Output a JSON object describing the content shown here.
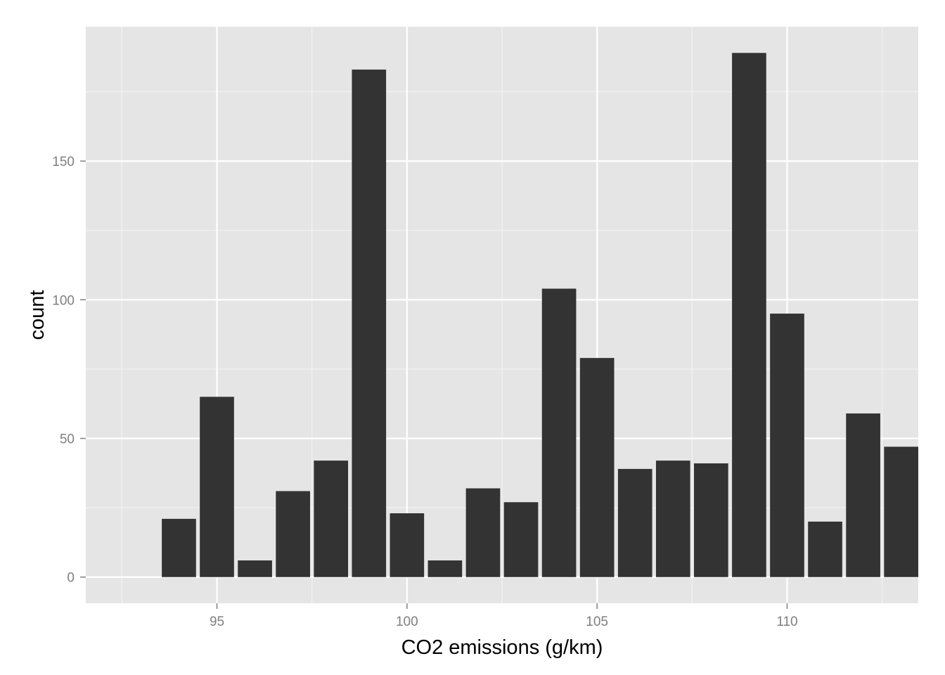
{
  "chart_data": {
    "type": "bar",
    "title": "",
    "xlabel": "CO2 emissions (g/km)",
    "ylabel": "count",
    "x": [
      94,
      95,
      96,
      97,
      98,
      99,
      100,
      101,
      102,
      103,
      104,
      105,
      106,
      107,
      108,
      109,
      110,
      111,
      112,
      113
    ],
    "values": [
      21,
      65,
      6,
      31,
      42,
      183,
      23,
      6,
      32,
      27,
      104,
      79,
      39,
      42,
      41,
      189,
      95,
      20,
      59,
      47
    ],
    "xlim": [
      91.55,
      113.45
    ],
    "ylim": [
      -9.45,
      198.45
    ],
    "x_ticks": [
      95,
      100,
      105,
      110
    ],
    "x_tick_labels": [
      "95",
      "100",
      "105",
      "110"
    ],
    "y_ticks": [
      0,
      50,
      100,
      150
    ],
    "y_tick_labels": [
      "0",
      "50",
      "100",
      "150"
    ],
    "grid": true,
    "legend": "none",
    "colors": {
      "bar": "#333333",
      "panel": "#e5e5e5",
      "grid_major": "#ffffff",
      "grid_minor": "#f2f2f2",
      "tick_text": "#7f7f7f",
      "axis_title": "#000000"
    }
  }
}
